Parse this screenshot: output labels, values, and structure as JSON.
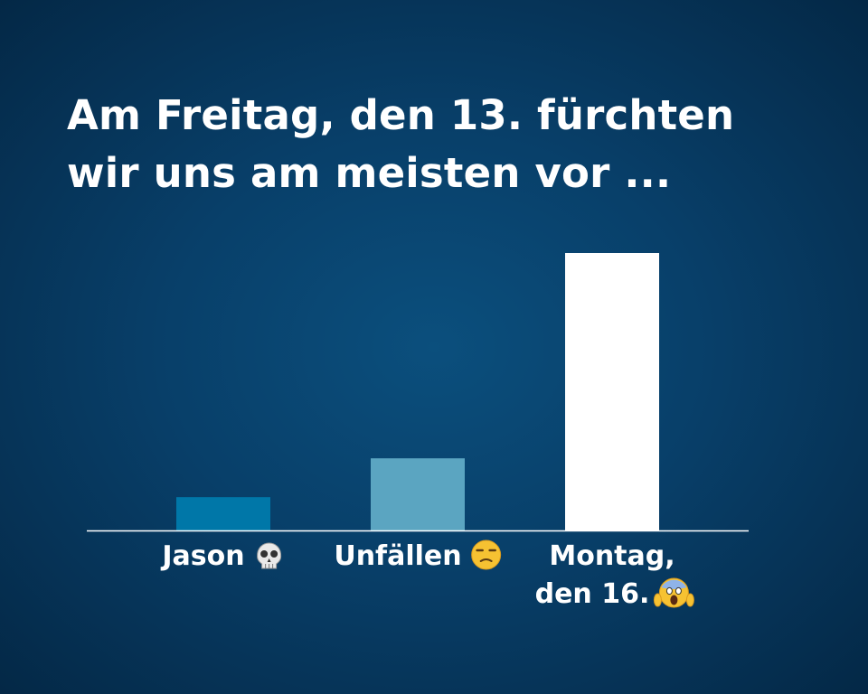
{
  "chart_data": {
    "type": "bar",
    "title_lines": [
      "Am Freitag, den 13. fürchten",
      "wir uns am meisten vor ..."
    ],
    "categories": [
      {
        "label_lines": [
          "Jason"
        ],
        "icon": "skull-emoji-icon"
      },
      {
        "label_lines": [
          "Unfällen"
        ],
        "icon": "unamused-face-emoji-icon"
      },
      {
        "label_lines": [
          "Montag,",
          "den 16."
        ],
        "icon": "screaming-face-emoji-icon"
      }
    ],
    "values": [
      12,
      26,
      100
    ],
    "ylim": [
      0,
      100
    ],
    "colors": [
      "#0077a8",
      "#5ba5c1",
      "#ffffff"
    ],
    "baseline_color": "#ffffff",
    "grid": false,
    "legend": "none"
  }
}
